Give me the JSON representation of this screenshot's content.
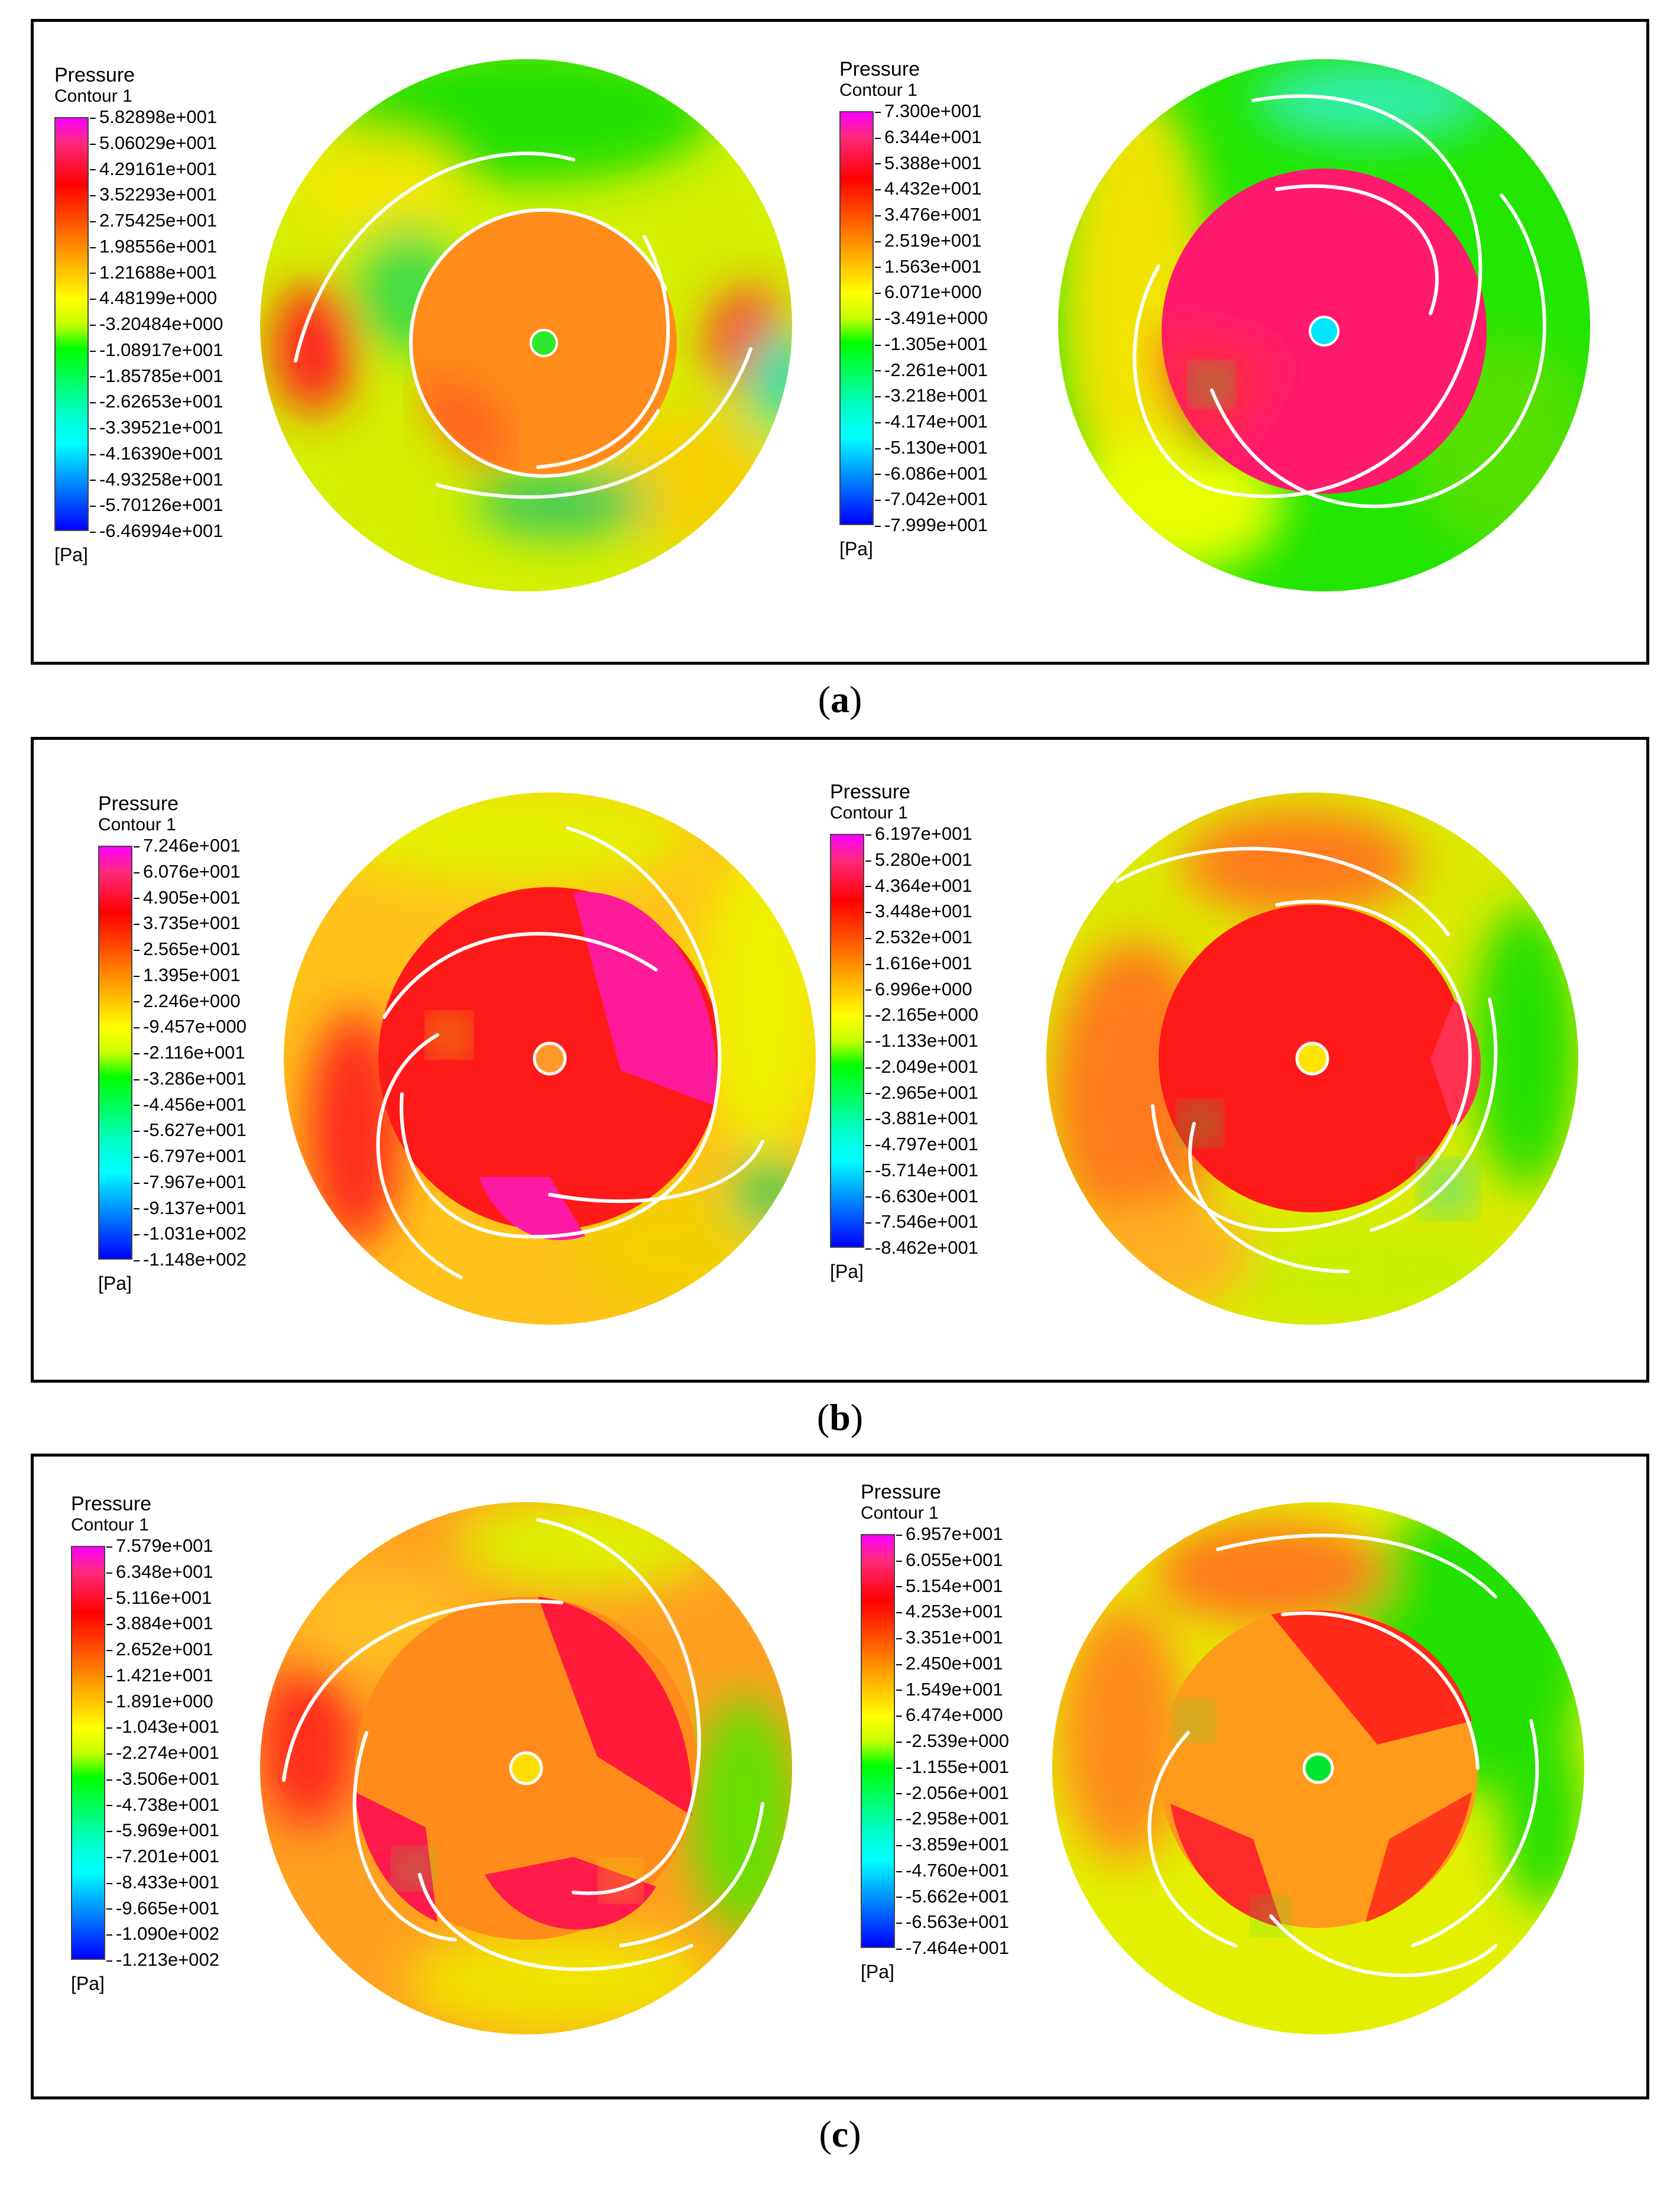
{
  "units": "[Pa]",
  "panels": [
    {
      "caption_label": "a",
      "left": {
        "title": "Pressure",
        "subtitle": "Contour 1",
        "ticks": [
          "5.82898e+001",
          "5.06029e+001",
          "4.29161e+001",
          "3.52293e+001",
          "2.75425e+001",
          "1.98556e+001",
          "1.21688e+001",
          "4.48199e+000",
          "-3.20484e+000",
          "-1.08917e+001",
          "-1.85785e+001",
          "-2.62653e+001",
          "-3.39521e+001",
          "-4.16390e+001",
          "-4.93258e+001",
          "-5.70126e+001",
          "-6.46994e+001"
        ],
        "units": "[Pa]"
      },
      "right": {
        "title": "Pressure",
        "subtitle": "Contour 1",
        "ticks": [
          "7.300e+001",
          "6.344e+001",
          "5.388e+001",
          "4.432e+001",
          "3.476e+001",
          "2.519e+001",
          "1.563e+001",
          "6.071e+000",
          "-3.491e+000",
          "-1.305e+001",
          "-2.261e+001",
          "-3.218e+001",
          "-4.174e+001",
          "-5.130e+001",
          "-6.086e+001",
          "-7.042e+001",
          "-7.999e+001"
        ],
        "units": "[Pa]"
      }
    },
    {
      "caption_label": "b",
      "left": {
        "title": "Pressure",
        "subtitle": "Contour 1",
        "ticks": [
          "7.246e+001",
          "6.076e+001",
          "4.905e+001",
          "3.735e+001",
          "2.565e+001",
          "1.395e+001",
          "2.246e+000",
          "-9.457e+000",
          "-2.116e+001",
          "-3.286e+001",
          "-4.456e+001",
          "-5.627e+001",
          "-6.797e+001",
          "-7.967e+001",
          "-9.137e+001",
          "-1.031e+002",
          "-1.148e+002"
        ],
        "units": "[Pa]"
      },
      "right": {
        "title": "Pressure",
        "subtitle": "Contour 1",
        "ticks": [
          "6.197e+001",
          "5.280e+001",
          "4.364e+001",
          "3.448e+001",
          "2.532e+001",
          "1.616e+001",
          "6.996e+000",
          "-2.165e+000",
          "-1.133e+001",
          "-2.049e+001",
          "-2.965e+001",
          "-3.881e+001",
          "-4.797e+001",
          "-5.714e+001",
          "-6.630e+001",
          "-7.546e+001",
          "-8.462e+001"
        ],
        "units": "[Pa]"
      }
    },
    {
      "caption_label": "c",
      "left": {
        "title": "Pressure",
        "subtitle": "Contour 1",
        "ticks": [
          "7.579e+001",
          "6.348e+001",
          "5.116e+001",
          "3.884e+001",
          "2.652e+001",
          "1.421e+001",
          "1.891e+000",
          "-1.043e+001",
          "-2.274e+001",
          "-3.506e+001",
          "-4.738e+001",
          "-5.969e+001",
          "-7.201e+001",
          "-8.433e+001",
          "-9.665e+001",
          "-1.090e+002",
          "-1.213e+002"
        ],
        "units": "[Pa]"
      },
      "right": {
        "title": "Pressure",
        "subtitle": "Contour 1",
        "ticks": [
          "6.957e+001",
          "6.055e+001",
          "5.154e+001",
          "4.253e+001",
          "3.351e+001",
          "2.450e+001",
          "1.549e+001",
          "6.474e+000",
          "-2.539e+000",
          "-1.155e+001",
          "-2.056e+001",
          "-2.958e+001",
          "-3.859e+001",
          "-4.760e+001",
          "-5.662e+001",
          "-6.563e+001",
          "-7.464e+001"
        ],
        "units": "[Pa]"
      }
    }
  ]
}
